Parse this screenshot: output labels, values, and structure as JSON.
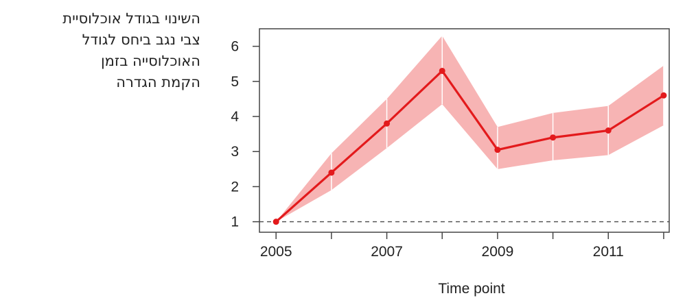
{
  "chart_data": {
    "type": "line",
    "title": "",
    "ylabel_lines": [
      "השינוי בגודל אוכלוסיית",
      "צבי נגב ביחס לגודל",
      "האוכלוסייה בזמן",
      "הקמת הגדרה"
    ],
    "xlabel": "Time point",
    "x": [
      2005,
      2006,
      2007,
      2008,
      2009,
      2010,
      2011,
      2012
    ],
    "xticks": [
      2005,
      2006,
      2007,
      2008,
      2009,
      2010,
      2011,
      2012
    ],
    "xtick_labels": [
      "2005",
      "",
      "2007",
      "",
      "2009",
      "",
      "2011",
      ""
    ],
    "yticks": [
      1,
      2,
      3,
      4,
      5,
      6
    ],
    "ytick_labels": [
      "1",
      "2",
      "3",
      "4",
      "5",
      "6"
    ],
    "ylim": [
      0.7,
      6.5
    ],
    "xlim": [
      2004.7,
      2012.1
    ],
    "reference_line": 1,
    "series": [
      {
        "values": [
          1.0,
          2.4,
          3.8,
          5.3,
          3.05,
          3.4,
          3.6,
          4.6
        ],
        "lower": [
          1.0,
          1.9,
          3.1,
          4.35,
          2.5,
          2.75,
          2.9,
          3.75
        ],
        "upper": [
          1.0,
          2.95,
          4.5,
          6.3,
          3.7,
          4.1,
          4.3,
          5.45
        ]
      }
    ],
    "colors": {
      "line": "#e31a1c",
      "band": "#f7b4b4",
      "axis": "#444444",
      "refline": "#555555"
    },
    "grid": false,
    "legend": "none"
  }
}
